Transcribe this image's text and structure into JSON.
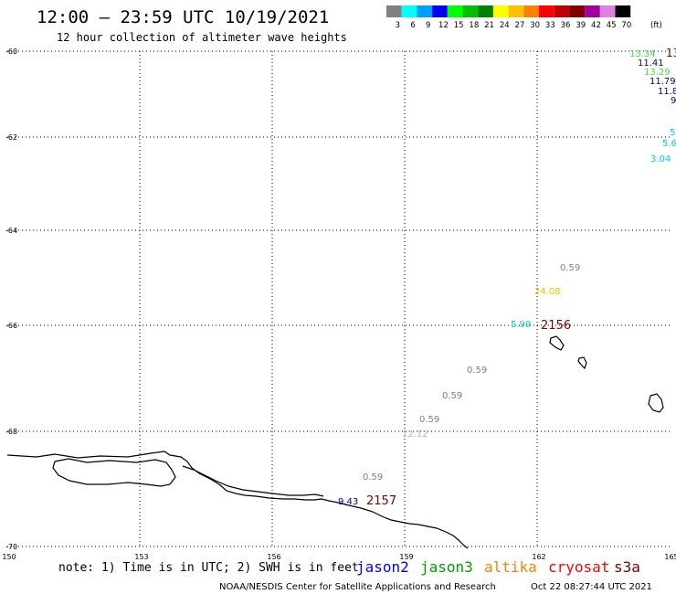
{
  "header": {
    "title": "12:00 – 23:59 UTC 10/19/2021",
    "subtitle": "12 hour collection of altimeter wave heights"
  },
  "legend": {
    "unit": "(ft)",
    "bins": [
      {
        "label": "3",
        "color": "#808080"
      },
      {
        "label": "6",
        "color": "#00ffff"
      },
      {
        "label": "9",
        "color": "#00a0ff"
      },
      {
        "label": "12",
        "color": "#0000ff"
      },
      {
        "label": "15",
        "color": "#00ff00"
      },
      {
        "label": "18",
        "color": "#00c000"
      },
      {
        "label": "21",
        "color": "#008000"
      },
      {
        "label": "24",
        "color": "#ffff00"
      },
      {
        "label": "27",
        "color": "#ffc000"
      },
      {
        "label": "30",
        "color": "#ff8000"
      },
      {
        "label": "33",
        "color": "#ff0000"
      },
      {
        "label": "36",
        "color": "#c00000"
      },
      {
        "label": "39",
        "color": "#800000"
      },
      {
        "label": "42",
        "color": "#a000a0"
      },
      {
        "label": "45",
        "color": "#e080e0"
      },
      {
        "label": "70",
        "color": "#000000"
      }
    ]
  },
  "axes": {
    "lon_range": [
      150,
      165
    ],
    "lat_range": [
      -60,
      -70
    ],
    "lon_ticks": [
      "150",
      "153",
      "156",
      "159",
      "162",
      "165"
    ],
    "lat_ticks": [
      "-60",
      "-62",
      "-64",
      "-66",
      "-68",
      "-70"
    ]
  },
  "observations": [
    {
      "text": "13.34",
      "color": "#40e040"
    },
    {
      "text": "13",
      "color": "#800000"
    },
    {
      "text": "11.41",
      "color": "#0000a0"
    },
    {
      "text": "13.29",
      "color": "#40e040"
    },
    {
      "text": "11.79",
      "color": "#0000a0"
    },
    {
      "text": "11.8",
      "color": "#0000a0"
    },
    {
      "text": "9",
      "color": "#0000a0"
    },
    {
      "text": "5",
      "color": "#00d0e0"
    },
    {
      "text": "5.6",
      "color": "#00d0e0"
    },
    {
      "text": "3.04",
      "color": "#00d0e0"
    },
    {
      "text": "0.59",
      "color": "#808080"
    },
    {
      "text": "24.08",
      "color": "#f0c000"
    },
    {
      "text": "5.99",
      "color": "#00d0e0"
    },
    {
      "text": "0.59",
      "color": "#808080"
    },
    {
      "text": "0.59",
      "color": "#808080"
    },
    {
      "text": "0.59",
      "color": "#808080"
    },
    {
      "text": "12.12",
      "color": "#b0b0f0"
    },
    {
      "text": "0.59",
      "color": "#808080"
    },
    {
      "text": "9.43",
      "color": "#0000a0"
    }
  ],
  "passes": [
    {
      "label": "2156"
    },
    {
      "label": "2157"
    }
  ],
  "footer": {
    "note": "note: 1) Time is in UTC; 2) SWH is in feet",
    "satellites": [
      {
        "name": "jason2",
        "color": "#0000ff"
      },
      {
        "name": "jason3",
        "color": "#00a000"
      },
      {
        "name": "altika",
        "color": "#ff8000"
      },
      {
        "name": "cryosat",
        "color": "#ff0000"
      },
      {
        "name": "s3a",
        "color": "#800000"
      }
    ],
    "credit": "NOAA/NESDIS Center for Satellite Applications and Research",
    "timestamp": "Oct 22 08:27:44 UTC 2021"
  }
}
